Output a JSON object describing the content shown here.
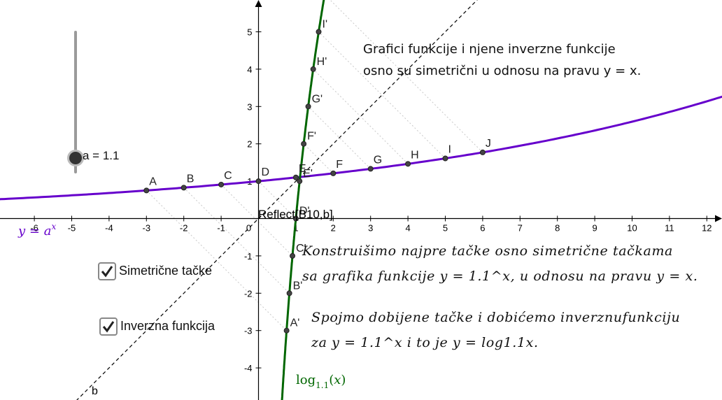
{
  "x_ticks": [
    "-6",
    "-5",
    "-4",
    "-3",
    "-2",
    "-1",
    "0",
    "1",
    "2",
    "3",
    "4",
    "5",
    "6",
    "7",
    "8",
    "9",
    "10",
    "11",
    "12"
  ],
  "y_ticks": [
    "5",
    "4",
    "3",
    "2",
    "1",
    "-1",
    "-2",
    "-3",
    "-4"
  ],
  "parameter": {
    "name": "a",
    "value": 1.1,
    "label": "a = 1.1"
  },
  "checkboxes": [
    {
      "label": "Simetrične tačke",
      "checked": true
    },
    {
      "label": "Inverzna funkcija",
      "checked": true
    }
  ],
  "points": [
    "A",
    "B",
    "C",
    "D",
    "E",
    "F",
    "G",
    "H",
    "I",
    "J"
  ],
  "reflected_points": [
    "A'",
    "B'",
    "C'",
    "D'",
    "E'",
    "F'",
    "G'",
    "H'",
    "I'"
  ],
  "point_x_values": [
    -3,
    -2,
    -1,
    0,
    1,
    2,
    3,
    4,
    5,
    6
  ],
  "labels": {
    "exp_function": "y = a^x",
    "log_function": "log1.1(x)",
    "line_b": "b",
    "reflect_command": "Reflect[B10,b]"
  },
  "notes": {
    "top_line1": "Grafici funkcije i njene inverzne funkcije",
    "top_line2": "osno su simetrični u odnosu na pravu y = x.",
    "mid_line1": "Konstruišimo najpre tačke osno simetrične tačkama",
    "mid_line2": "sa grafika funkcije y = 1.1^x, u odnosu na pravu y = x.",
    "bottom_line1": "Spojmo dobijene tačke i dobićemo inverznufunkciju",
    "bottom_line2": "za y = 1.1^x i to je y = log1.1x."
  },
  "colors": {
    "exp_curve": "#6600cc",
    "log_curve": "#006600",
    "axes": "#000000",
    "points": "#444444"
  }
}
